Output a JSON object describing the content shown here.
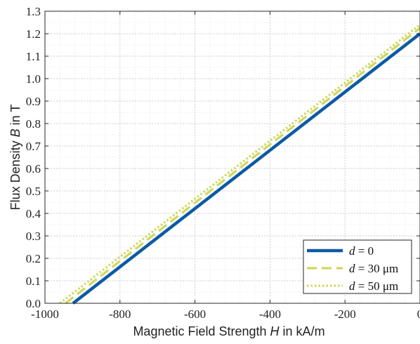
{
  "chart_data": {
    "type": "line",
    "xlabel_prefix": "Magnetic Field Strength ",
    "xlabel_symbol": "H",
    "xlabel_suffix": " in kA/m",
    "ylabel_prefix": "Flux Density ",
    "ylabel_symbol": "B",
    "ylabel_suffix": " in T",
    "xlim": [
      -1000,
      0
    ],
    "ylim": [
      0,
      1.3
    ],
    "xticks": [
      -1000,
      -800,
      -600,
      -400,
      -200,
      0
    ],
    "xtick_labels": [
      "-1000",
      "-800",
      "-600",
      "-400",
      "-200",
      "0"
    ],
    "yticks": [
      0,
      0.1,
      0.2,
      0.3,
      0.4,
      0.5,
      0.6,
      0.7,
      0.8,
      0.9,
      1.0,
      1.1,
      1.2,
      1.3
    ],
    "ytick_labels": [
      "0.0",
      "0.1",
      "0.2",
      "0.3",
      "0.4",
      "0.5",
      "0.6",
      "0.7",
      "0.8",
      "0.9",
      "1.0",
      "1.1",
      "1.2",
      "1.3"
    ],
    "grid": "major and minor",
    "legend_position": "bottom-right",
    "series": [
      {
        "symbol": "d",
        "rest": " = 0",
        "x": [
          -925,
          0
        ],
        "y": [
          0,
          1.2
        ],
        "color": "#0b5aa6",
        "style": "solid"
      },
      {
        "symbol": "d",
        "rest": " = 30 μm",
        "x": [
          -945,
          0
        ],
        "y": [
          0,
          1.225
        ],
        "color": "#cfd85c",
        "style": "dashed"
      },
      {
        "symbol": "d",
        "rest": " = 50 μm",
        "x": [
          -960,
          0
        ],
        "y": [
          0,
          1.24
        ],
        "color": "#cfd85c",
        "style": "dotted"
      }
    ]
  }
}
